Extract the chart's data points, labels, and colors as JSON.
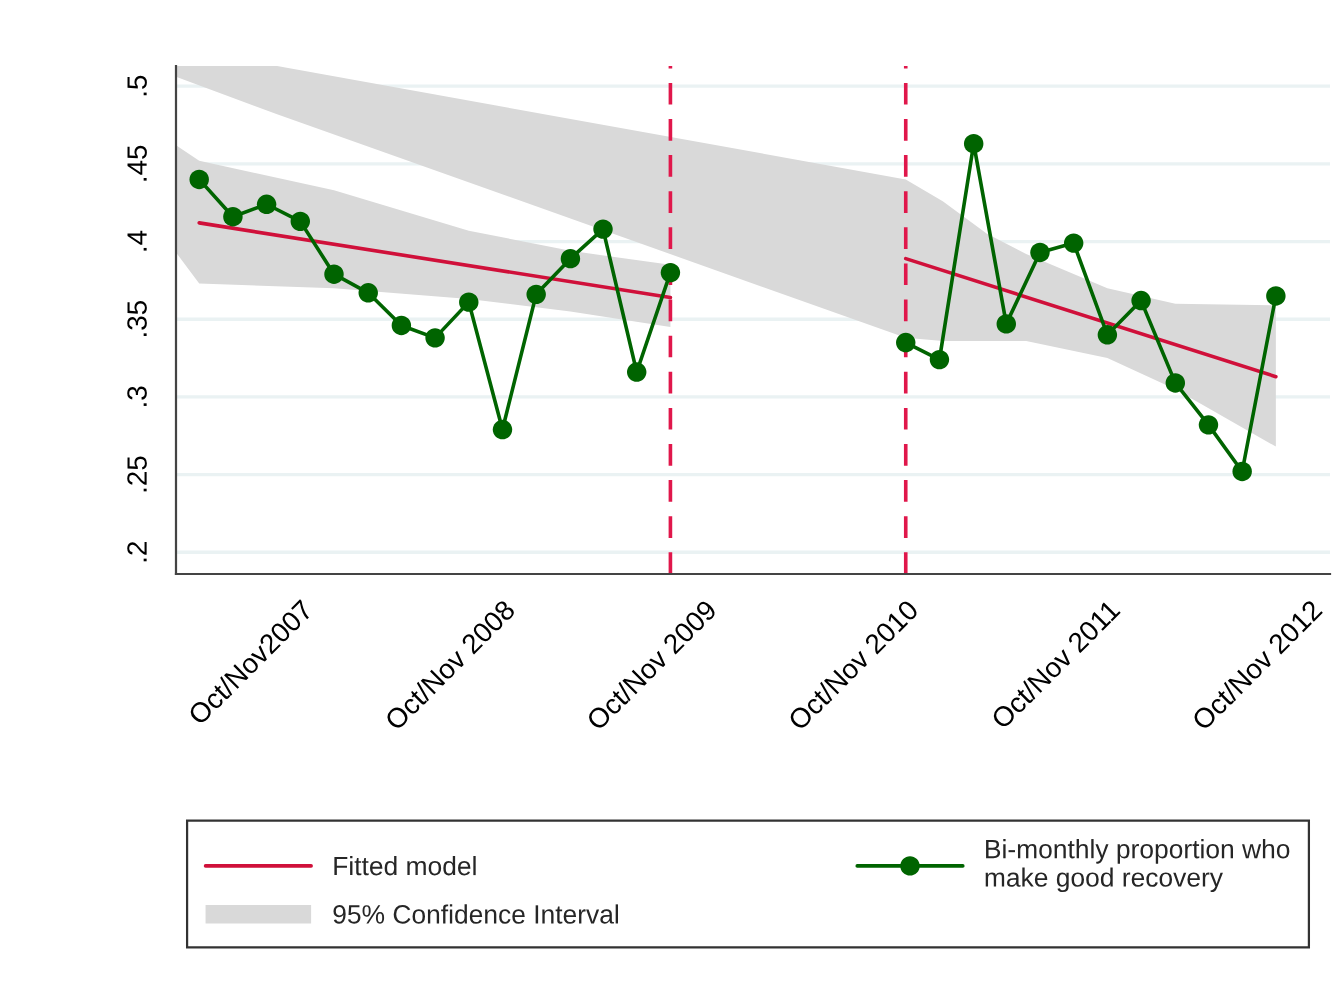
{
  "chart_data": {
    "type": "line",
    "xlim": [
      "2007-02-18",
      "2012-11-07"
    ],
    "xticks": [
      {
        "value": "2007-10",
        "label": "Oct/Nov2007"
      },
      {
        "value": "2008-10",
        "label": "Oct/Nov 2008"
      },
      {
        "value": "2009-10",
        "label": "Oct/Nov 2009"
      },
      {
        "value": "2010-10",
        "label": "Oct/Nov 2010"
      },
      {
        "value": "2011-10",
        "label": "Oct/Nov 2011"
      },
      {
        "value": "2012-10",
        "label": "Oct/Nov 2012"
      }
    ],
    "ylim": [
      0.186,
      0.513
    ],
    "yticks": [
      {
        "value": 0.2,
        "label": ".2"
      },
      {
        "value": 0.25,
        "label": ".25"
      },
      {
        "value": 0.3,
        "label": ".3"
      },
      {
        "value": 0.35,
        "label": ".35"
      },
      {
        "value": 0.4,
        "label": ".4"
      },
      {
        "value": 0.45,
        "label": ".45"
      },
      {
        "value": 0.5,
        "label": ".5"
      }
    ],
    "grid": "y",
    "legend": "bottom",
    "series": [
      {
        "type": "area",
        "name": "95% Confidence Interval",
        "color": "#d9d9d9",
        "x": [
          "2007-02-18",
          "2007-04",
          "2007-12",
          "2008-08",
          "2009-02",
          "2009-08"
        ],
        "values": [
          null,
          null,
          null,
          null,
          null,
          null
        ],
        "lower": [
          0.393,
          0.373,
          0.37,
          0.363,
          0.355,
          0.345
        ],
        "upper": [
          0.462,
          0.452,
          0.433,
          0.407,
          0.394,
          0.385
        ]
      },
      {
        "type": "area",
        "color": "#d9d9d9",
        "x": [
          "2007-02-18",
          "2007-08-20",
          "2010-10",
          "2010-12-07",
          "2011-02-25",
          "2011-05-07",
          "2011-10",
          "2012-02",
          "2012-08"
        ],
        "values": [
          null,
          null,
          null,
          null,
          null,
          null,
          null,
          null,
          null
        ],
        "lower": [
          0.506,
          0.482,
          0.338,
          0.336,
          0.336,
          0.336,
          0.325,
          0.305,
          0.268
        ],
        "upper": [
          0.513,
          0.513,
          0.44,
          0.426,
          0.405,
          0.392,
          0.37,
          0.36,
          0.359
        ]
      },
      {
        "name": "Fitted model",
        "color": "#d0103a",
        "marker": "none",
        "x": [
          "2007-04",
          "2009-08"
        ],
        "values": [
          0.412,
          0.364
        ]
      },
      {
        "color": "#d0103a",
        "marker": "none",
        "x": [
          "2010-10",
          "2012-08"
        ],
        "values": [
          0.389,
          0.313
        ]
      },
      {
        "name": "Bi-monthly proportion who\nmake good recovery",
        "color": "#006400",
        "marker": "circle",
        "x": [
          "2007-04",
          "2007-06",
          "2007-08",
          "2007-10",
          "2007-12",
          "2008-02",
          "2008-04",
          "2008-06",
          "2008-08",
          "2008-10",
          "2008-12",
          "2009-02",
          "2009-04",
          "2009-06",
          "2009-08"
        ],
        "values": [
          0.44,
          0.416,
          0.424,
          0.413,
          0.379,
          0.367,
          0.346,
          0.338,
          0.361,
          0.279,
          0.366,
          0.389,
          0.408,
          0.316,
          0.38
        ]
      },
      {
        "color": "#006400",
        "marker": "circle",
        "x": [
          "2010-10",
          "2010-12",
          "2011-02",
          "2011-04",
          "2011-06",
          "2011-08",
          "2011-10",
          "2011-12",
          "2012-02",
          "2012-04",
          "2012-06",
          "2012-08"
        ],
        "values": [
          0.335,
          0.324,
          0.463,
          0.347,
          0.393,
          0.399,
          0.34,
          0.362,
          0.309,
          0.282,
          0.252,
          0.365
        ]
      }
    ],
    "ref_lines": [
      {
        "axis": "x",
        "value": "2009-08",
        "color": "#e0174b",
        "line_style": "dashed"
      },
      {
        "axis": "x",
        "value": "2010-10",
        "color": "#e0174b",
        "line_style": "dashed"
      }
    ]
  }
}
